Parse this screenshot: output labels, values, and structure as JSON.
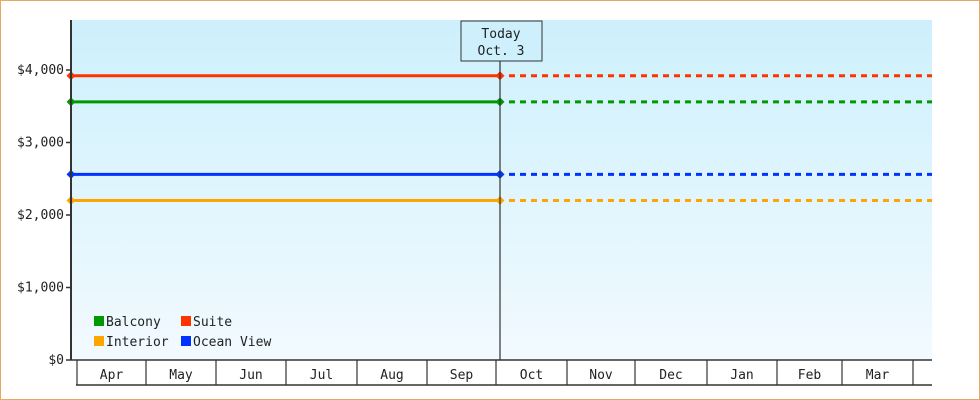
{
  "chart_data": {
    "type": "line",
    "title": "",
    "xlabel": "",
    "ylabel": "",
    "ylim": [
      0,
      4700
    ],
    "yticks": [
      0,
      1000,
      2000,
      3000,
      4000
    ],
    "ytick_labels": [
      "$0",
      "$1,000",
      "$2,000",
      "$3,000",
      "$4,000"
    ],
    "categories": [
      "Apr",
      "May",
      "Jun",
      "Jul",
      "Aug",
      "Sep",
      "Oct",
      "Nov",
      "Dec",
      "Jan",
      "Feb",
      "Mar"
    ],
    "grid": false,
    "background": "light blue gradient",
    "today_marker": {
      "line1": "Today",
      "line2": "Oct. 3"
    },
    "legend_placement": "bottom-left",
    "series": [
      {
        "name": "Balcony",
        "color": "#009900",
        "value": 3560,
        "style_after_today": "dashed"
      },
      {
        "name": "Suite",
        "color": "#ff3300",
        "value": 3920,
        "style_after_today": "dashed"
      },
      {
        "name": "Interior",
        "color": "#ffa500",
        "value": 2200,
        "style_after_today": "dashed"
      },
      {
        "name": "Ocean View",
        "color": "#0033ff",
        "value": 2560,
        "style_after_today": "dashed"
      }
    ]
  }
}
